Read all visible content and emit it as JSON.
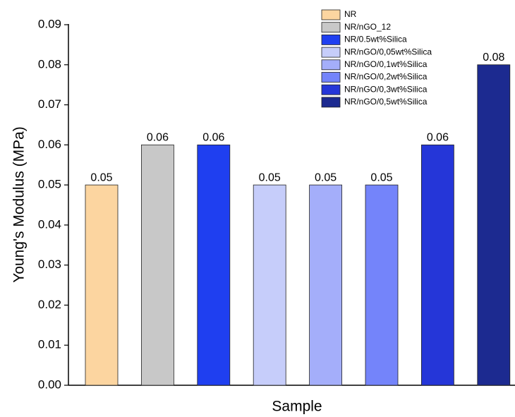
{
  "chart_data": {
    "type": "bar",
    "x_label": "Sample",
    "y_label": "Young's Modulus (MPa)",
    "categories": [
      null,
      null,
      null,
      null,
      null,
      null,
      null,
      null
    ],
    "series": [
      {
        "name": "NR",
        "color": "#fcd5a0",
        "values": [
          0.05,
          null,
          null,
          null,
          null,
          null,
          null,
          null
        ]
      },
      {
        "name": "NR/nGO_12",
        "color": "#c8c8c8",
        "values": [
          null,
          0.06,
          null,
          null,
          null,
          null,
          null,
          null
        ]
      },
      {
        "name": "NR/0.5wt%Silica",
        "color": "#1f3ff0",
        "values": [
          null,
          null,
          0.06,
          null,
          null,
          null,
          null,
          null
        ]
      },
      {
        "name": "NR/nGO/0,05wt%Silica",
        "color": "#c6cdfa",
        "values": [
          null,
          null,
          null,
          0.05,
          null,
          null,
          null,
          null
        ]
      },
      {
        "name": "NR/nGO/0,1wt%Silica",
        "color": "#a4aefa",
        "values": [
          null,
          null,
          null,
          null,
          0.05,
          null,
          null,
          null
        ]
      },
      {
        "name": "NR/nGO/0,2wt%Silica",
        "color": "#7484fa",
        "values": [
          null,
          null,
          null,
          null,
          null,
          0.05,
          null,
          null
        ]
      },
      {
        "name": "NR/nGO/0,3wt%Silica",
        "color": "#2536d8",
        "values": [
          null,
          null,
          null,
          null,
          null,
          null,
          0.06,
          null
        ]
      },
      {
        "name": "NR/nGO/0,5wt%Silica",
        "color": "#1c2a90",
        "values": [
          null,
          null,
          null,
          null,
          null,
          null,
          null,
          0.08
        ]
      }
    ],
    "ylim": [
      0,
      0.09
    ],
    "yticks": [
      {
        "value": 0,
        "label": "0.00"
      },
      0.01,
      0.02,
      0.03,
      0.04,
      0.05,
      0.06,
      0.07,
      0.08,
      0.09
    ],
    "legend": "upper right"
  }
}
